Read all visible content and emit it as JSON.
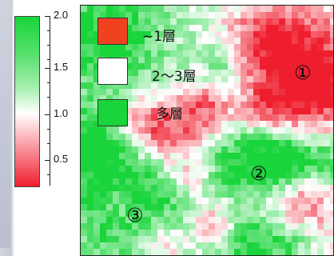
{
  "chart_data": {
    "type": "heatmap",
    "title": "",
    "colorbar": {
      "ticks": [
        2.0,
        1.5,
        1.0,
        0.5
      ],
      "tick_labels": [
        "2.0",
        "1.5",
        "1.0",
        "0.5"
      ],
      "range": [
        0.3,
        2.05
      ],
      "colormap": [
        "#ef1e2e",
        "#ffffff",
        "#19d43a"
      ],
      "position": "left"
    },
    "legend": {
      "placement": "top-left",
      "entries": [
        {
          "label": "~1層",
          "color": "#f0421f"
        },
        {
          "label": "2～3層",
          "color": "#ffffff"
        },
        {
          "label": "多層",
          "color": "#19d43a"
        }
      ]
    },
    "annotations": [
      {
        "label": "①",
        "region": "top-right"
      },
      {
        "label": "②",
        "region": "center"
      },
      {
        "label": "③",
        "region": "bottom-left"
      }
    ],
    "grid": false
  }
}
